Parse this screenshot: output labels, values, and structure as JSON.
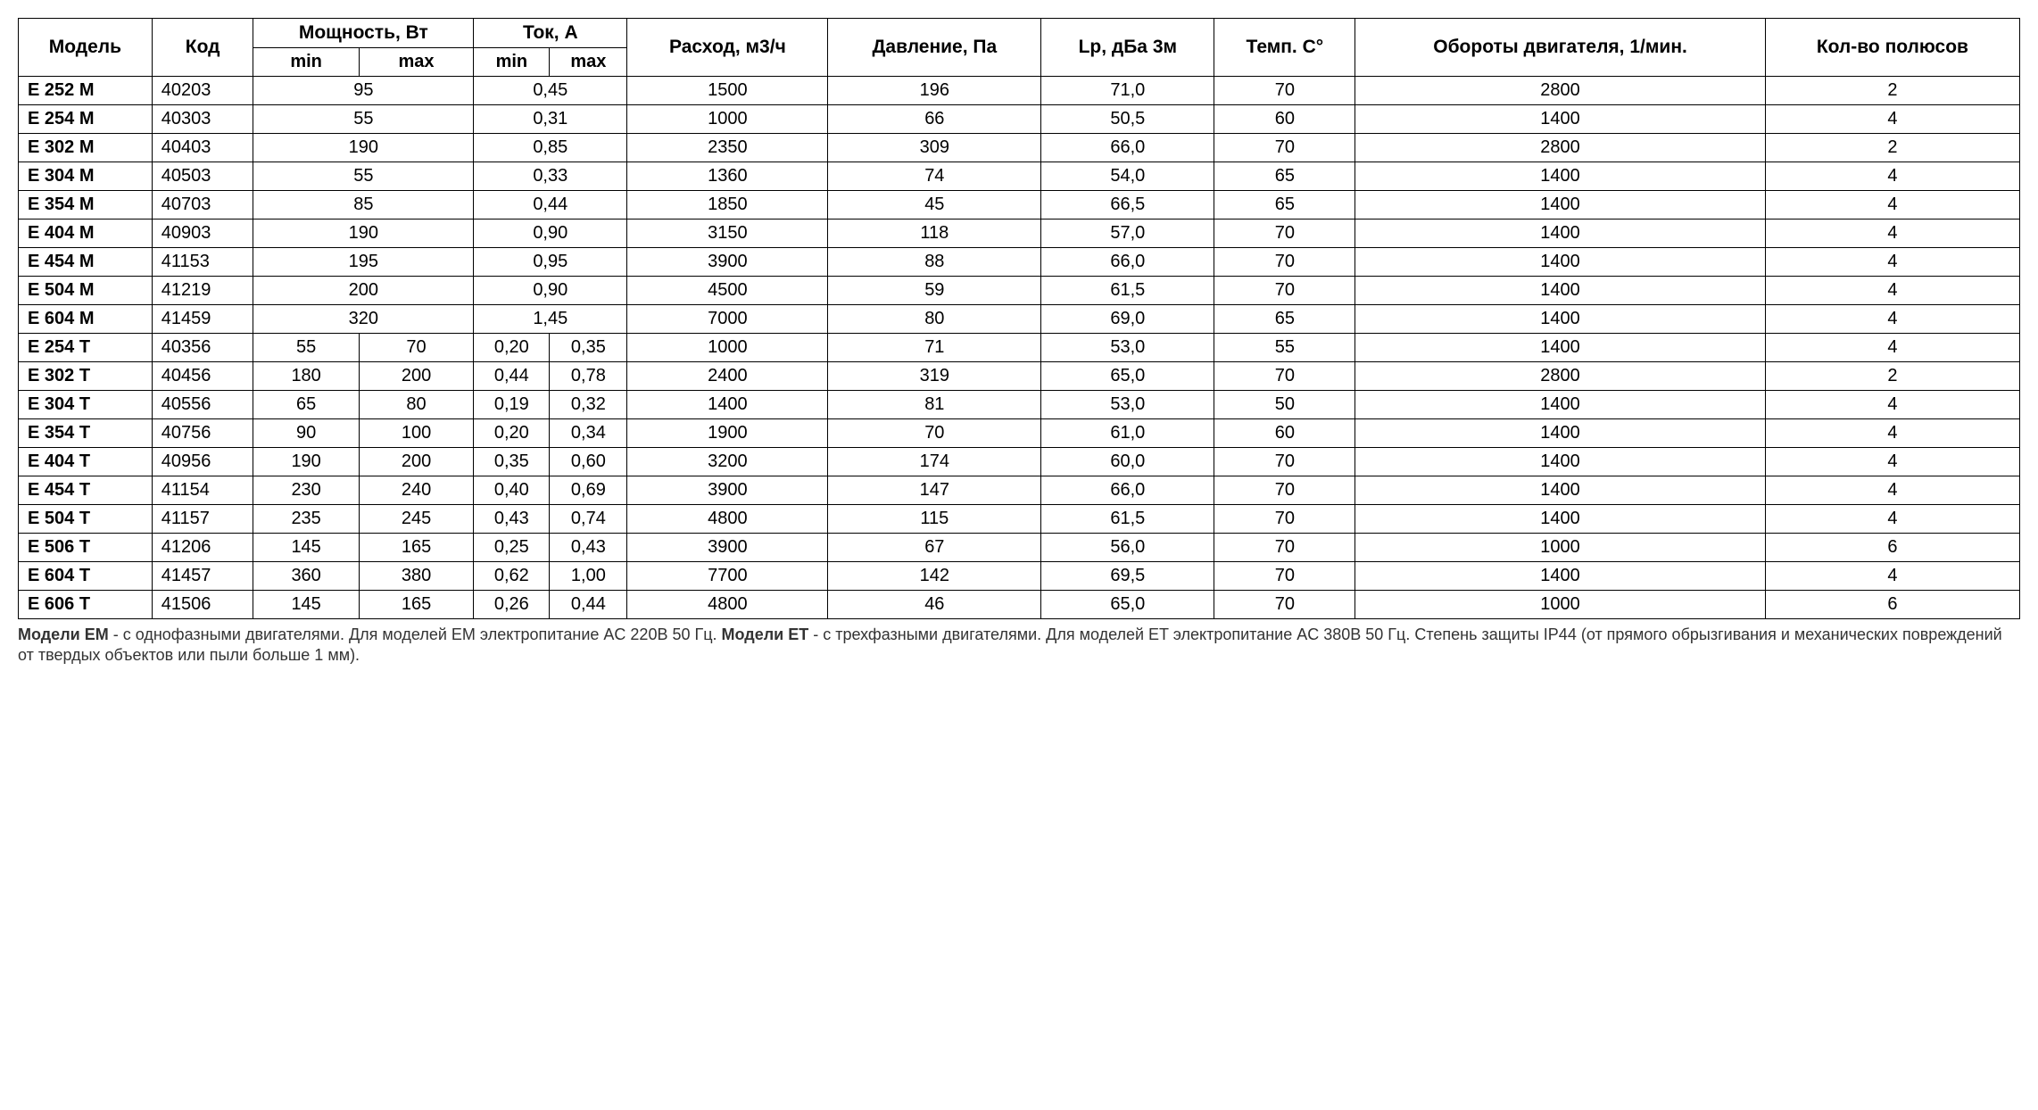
{
  "table": {
    "headers": {
      "model": "Модель",
      "code": "Код",
      "power": "Мощность, Вт",
      "current": "Ток, А",
      "min": "min",
      "max": "max",
      "flow": "Расход, м3/ч",
      "pressure": "Давление, Па",
      "lp": "Lp, дБа 3м",
      "temp": "Темп. C°",
      "rpm": "Обороты двигателя, 1/мин.",
      "poles": "Кол-во полюсов"
    },
    "rows": [
      {
        "model": "E 252 M",
        "code": "40203",
        "pmin": "95",
        "pmax": "",
        "cmin": "0,45",
        "cmax": "",
        "flow": "1500",
        "pressure": "196",
        "lp": "71,0",
        "temp": "70",
        "rpm": "2800",
        "poles": "2",
        "merged": true
      },
      {
        "model": "E 254 M",
        "code": "40303",
        "pmin": "55",
        "pmax": "",
        "cmin": "0,31",
        "cmax": "",
        "flow": "1000",
        "pressure": "66",
        "lp": "50,5",
        "temp": "60",
        "rpm": "1400",
        "poles": "4",
        "merged": true
      },
      {
        "model": "E 302 M",
        "code": "40403",
        "pmin": "190",
        "pmax": "",
        "cmin": "0,85",
        "cmax": "",
        "flow": "2350",
        "pressure": "309",
        "lp": "66,0",
        "temp": "70",
        "rpm": "2800",
        "poles": "2",
        "merged": true
      },
      {
        "model": "E 304 M",
        "code": "40503",
        "pmin": "55",
        "pmax": "",
        "cmin": "0,33",
        "cmax": "",
        "flow": "1360",
        "pressure": "74",
        "lp": "54,0",
        "temp": "65",
        "rpm": "1400",
        "poles": "4",
        "merged": true
      },
      {
        "model": "E 354 M",
        "code": "40703",
        "pmin": "85",
        "pmax": "",
        "cmin": "0,44",
        "cmax": "",
        "flow": "1850",
        "pressure": "45",
        "lp": "66,5",
        "temp": "65",
        "rpm": "1400",
        "poles": "4",
        "merged": true
      },
      {
        "model": "E 404 M",
        "code": "40903",
        "pmin": "190",
        "pmax": "",
        "cmin": "0,90",
        "cmax": "",
        "flow": "3150",
        "pressure": "118",
        "lp": "57,0",
        "temp": "70",
        "rpm": "1400",
        "poles": "4",
        "merged": true
      },
      {
        "model": "E 454 M",
        "code": "41153",
        "pmin": "195",
        "pmax": "",
        "cmin": "0,95",
        "cmax": "",
        "flow": "3900",
        "pressure": "88",
        "lp": "66,0",
        "temp": "70",
        "rpm": "1400",
        "poles": "4",
        "merged": true
      },
      {
        "model": "E 504 M",
        "code": "41219",
        "pmin": "200",
        "pmax": "",
        "cmin": "0,90",
        "cmax": "",
        "flow": "4500",
        "pressure": "59",
        "lp": "61,5",
        "temp": "70",
        "rpm": "1400",
        "poles": "4",
        "merged": true
      },
      {
        "model": "E 604 M",
        "code": "41459",
        "pmin": "320",
        "pmax": "",
        "cmin": "1,45",
        "cmax": "",
        "flow": "7000",
        "pressure": "80",
        "lp": "69,0",
        "temp": "65",
        "rpm": "1400",
        "poles": "4",
        "merged": true
      },
      {
        "model": "E 254 T",
        "code": "40356",
        "pmin": "55",
        "pmax": "70",
        "cmin": "0,20",
        "cmax": "0,35",
        "flow": "1000",
        "pressure": "71",
        "lp": "53,0",
        "temp": "55",
        "rpm": "1400",
        "poles": "4",
        "merged": false
      },
      {
        "model": "E 302 T",
        "code": "40456",
        "pmin": "180",
        "pmax": "200",
        "cmin": "0,44",
        "cmax": "0,78",
        "flow": "2400",
        "pressure": "319",
        "lp": "65,0",
        "temp": "70",
        "rpm": "2800",
        "poles": "2",
        "merged": false
      },
      {
        "model": "E 304 T",
        "code": "40556",
        "pmin": "65",
        "pmax": "80",
        "cmin": "0,19",
        "cmax": "0,32",
        "flow": "1400",
        "pressure": "81",
        "lp": "53,0",
        "temp": "50",
        "rpm": "1400",
        "poles": "4",
        "merged": false
      },
      {
        "model": "E 354 T",
        "code": "40756",
        "pmin": "90",
        "pmax": "100",
        "cmin": "0,20",
        "cmax": "0,34",
        "flow": "1900",
        "pressure": "70",
        "lp": "61,0",
        "temp": "60",
        "rpm": "1400",
        "poles": "4",
        "merged": false
      },
      {
        "model": "E 404 T",
        "code": "40956",
        "pmin": "190",
        "pmax": "200",
        "cmin": "0,35",
        "cmax": "0,60",
        "flow": "3200",
        "pressure": "174",
        "lp": "60,0",
        "temp": "70",
        "rpm": "1400",
        "poles": "4",
        "merged": false
      },
      {
        "model": "E 454 T",
        "code": "41154",
        "pmin": "230",
        "pmax": "240",
        "cmin": "0,40",
        "cmax": "0,69",
        "flow": "3900",
        "pressure": "147",
        "lp": "66,0",
        "temp": "70",
        "rpm": "1400",
        "poles": "4",
        "merged": false
      },
      {
        "model": "E 504 T",
        "code": "41157",
        "pmin": "235",
        "pmax": "245",
        "cmin": "0,43",
        "cmax": "0,74",
        "flow": "4800",
        "pressure": "115",
        "lp": "61,5",
        "temp": "70",
        "rpm": "1400",
        "poles": "4",
        "merged": false
      },
      {
        "model": "E 506 T",
        "code": "41206",
        "pmin": "145",
        "pmax": "165",
        "cmin": "0,25",
        "cmax": "0,43",
        "flow": "3900",
        "pressure": "67",
        "lp": "56,0",
        "temp": "70",
        "rpm": "1000",
        "poles": "6",
        "merged": false
      },
      {
        "model": "E 604 T",
        "code": "41457",
        "pmin": "360",
        "pmax": "380",
        "cmin": "0,62",
        "cmax": "1,00",
        "flow": "7700",
        "pressure": "142",
        "lp": "69,5",
        "temp": "70",
        "rpm": "1400",
        "poles": "4",
        "merged": false
      },
      {
        "model": "E 606 T",
        "code": "41506",
        "pmin": "145",
        "pmax": "165",
        "cmin": "0,26",
        "cmax": "0,44",
        "flow": "4800",
        "pressure": "46",
        "lp": "65,0",
        "temp": "70",
        "rpm": "1000",
        "poles": "6",
        "merged": false
      }
    ]
  },
  "footnote": {
    "bold1": "Модели EM",
    "text1": " - с однофазными двигателями. Для моделей EM электропитание AC 220В 50 Гц. ",
    "bold2": "Модели ET",
    "text2": " - с трехфазными двигателями. Для моделей ET электропитание AC 380В 50 Гц. Степень защиты IP44 (от прямого обрызгивания и механических повреждений от твердых объектов или пыли больше 1 мм)."
  },
  "style": {
    "col_widths": {
      "model": "8%",
      "code": "7%",
      "power_half": "5.5%",
      "current_half": "6%",
      "flow": "9%",
      "pressure": "9%",
      "lp": "8%",
      "temp": "8%",
      "rpm": "10%",
      "poles": "8%"
    }
  }
}
